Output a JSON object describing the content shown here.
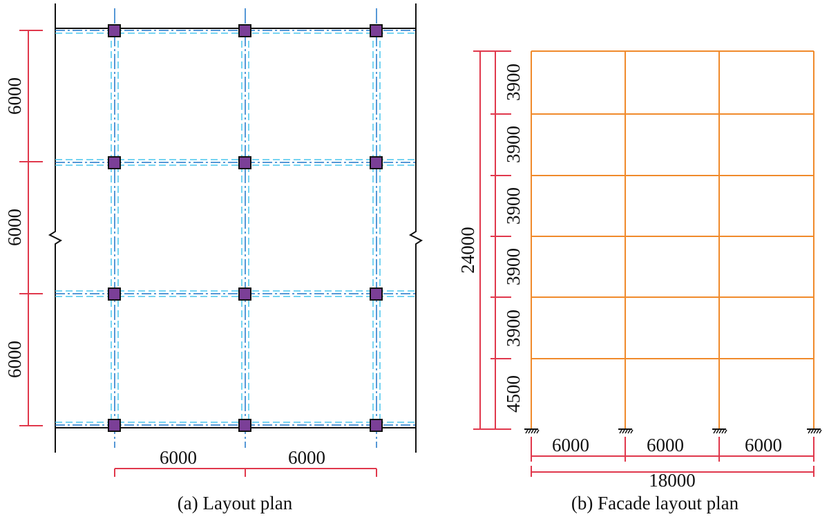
{
  "colors": {
    "structure_black": "#111111",
    "axis_blue": "#1f77c9",
    "beam_cyan": "#49c5ee",
    "column_purple": "#7b3f97",
    "dimension_red": "#e0384c",
    "frame_orange": "#f08a2b"
  },
  "layout_plan": {
    "caption": "(a) Layout plan",
    "vertical_dims": [
      "6000",
      "6000",
      "6000"
    ],
    "horizontal_dims": [
      "6000",
      "6000"
    ],
    "column_grid": {
      "columns": 3,
      "rows": 4
    }
  },
  "facade_plan": {
    "caption": "(b) Facade layout plan",
    "total_height": "24000",
    "story_heights": [
      "3900",
      "3900",
      "3900",
      "3900",
      "3900",
      "4500"
    ],
    "bay_widths": [
      "6000",
      "6000",
      "6000"
    ],
    "total_width": "18000"
  }
}
